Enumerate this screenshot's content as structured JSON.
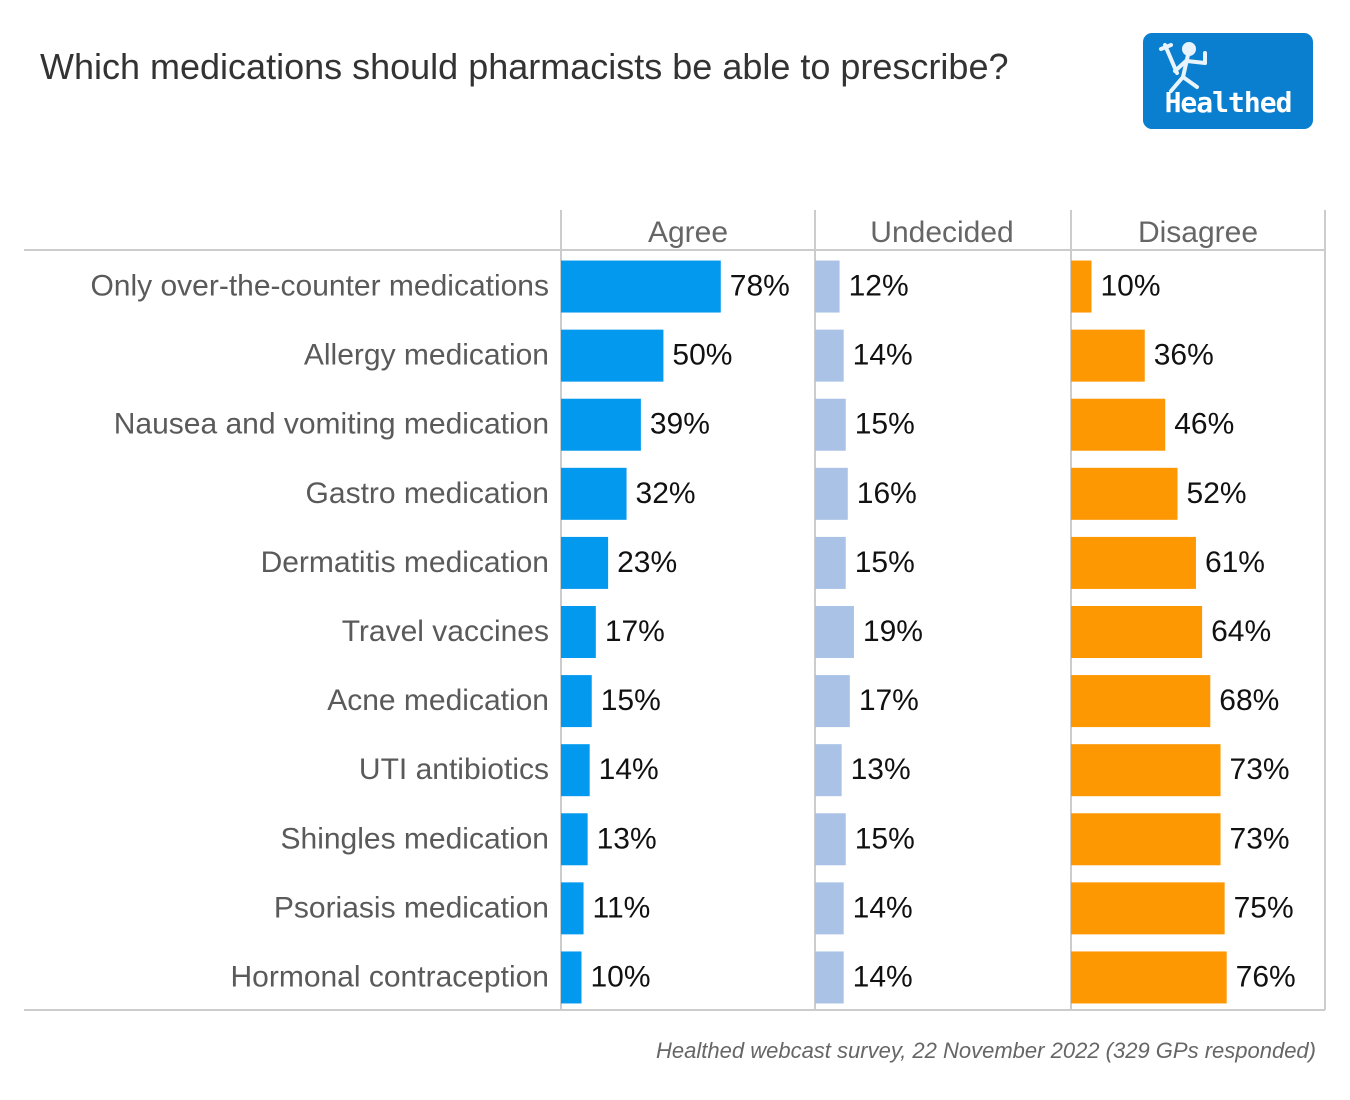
{
  "title": "Which medications should pharmacists be able to prescribe?",
  "logo": {
    "text": "Healthed",
    "icon": "running-figure-icon",
    "color": "#0a7fcf"
  },
  "source": "Healthed webcast survey, 22 November 2022 (329 GPs responded)",
  "chart_data": {
    "type": "bar",
    "orientation": "horizontal",
    "layout": "small-multiples",
    "title": "Which medications should pharmacists be able to prescribe?",
    "xlabel": "",
    "ylabel": "",
    "value_suffix": "%",
    "xlim": [
      0,
      124
    ],
    "grid": false,
    "categories": [
      "Only over-the-counter medications",
      "Allergy medication",
      "Nausea and vomiting medication",
      "Gastro medication",
      "Dermatitis medication",
      "Travel vaccines",
      "Acne medication",
      "UTI antibiotics",
      "Shingles medication",
      "Psoriasis medication",
      "Hormonal contraception"
    ],
    "series": [
      {
        "name": "Agree",
        "color": "#0399ee",
        "values": [
          78,
          50,
          39,
          32,
          23,
          17,
          15,
          14,
          13,
          11,
          10
        ]
      },
      {
        "name": "Undecided",
        "color": "#a9c2e6",
        "values": [
          12,
          14,
          15,
          16,
          15,
          19,
          17,
          13,
          15,
          14,
          14
        ]
      },
      {
        "name": "Disagree",
        "color": "#fd9702",
        "values": [
          10,
          36,
          46,
          52,
          61,
          64,
          68,
          73,
          73,
          75,
          76
        ]
      }
    ],
    "source": "Healthed webcast survey, 22 November 2022 (329 GPs responded)"
  }
}
